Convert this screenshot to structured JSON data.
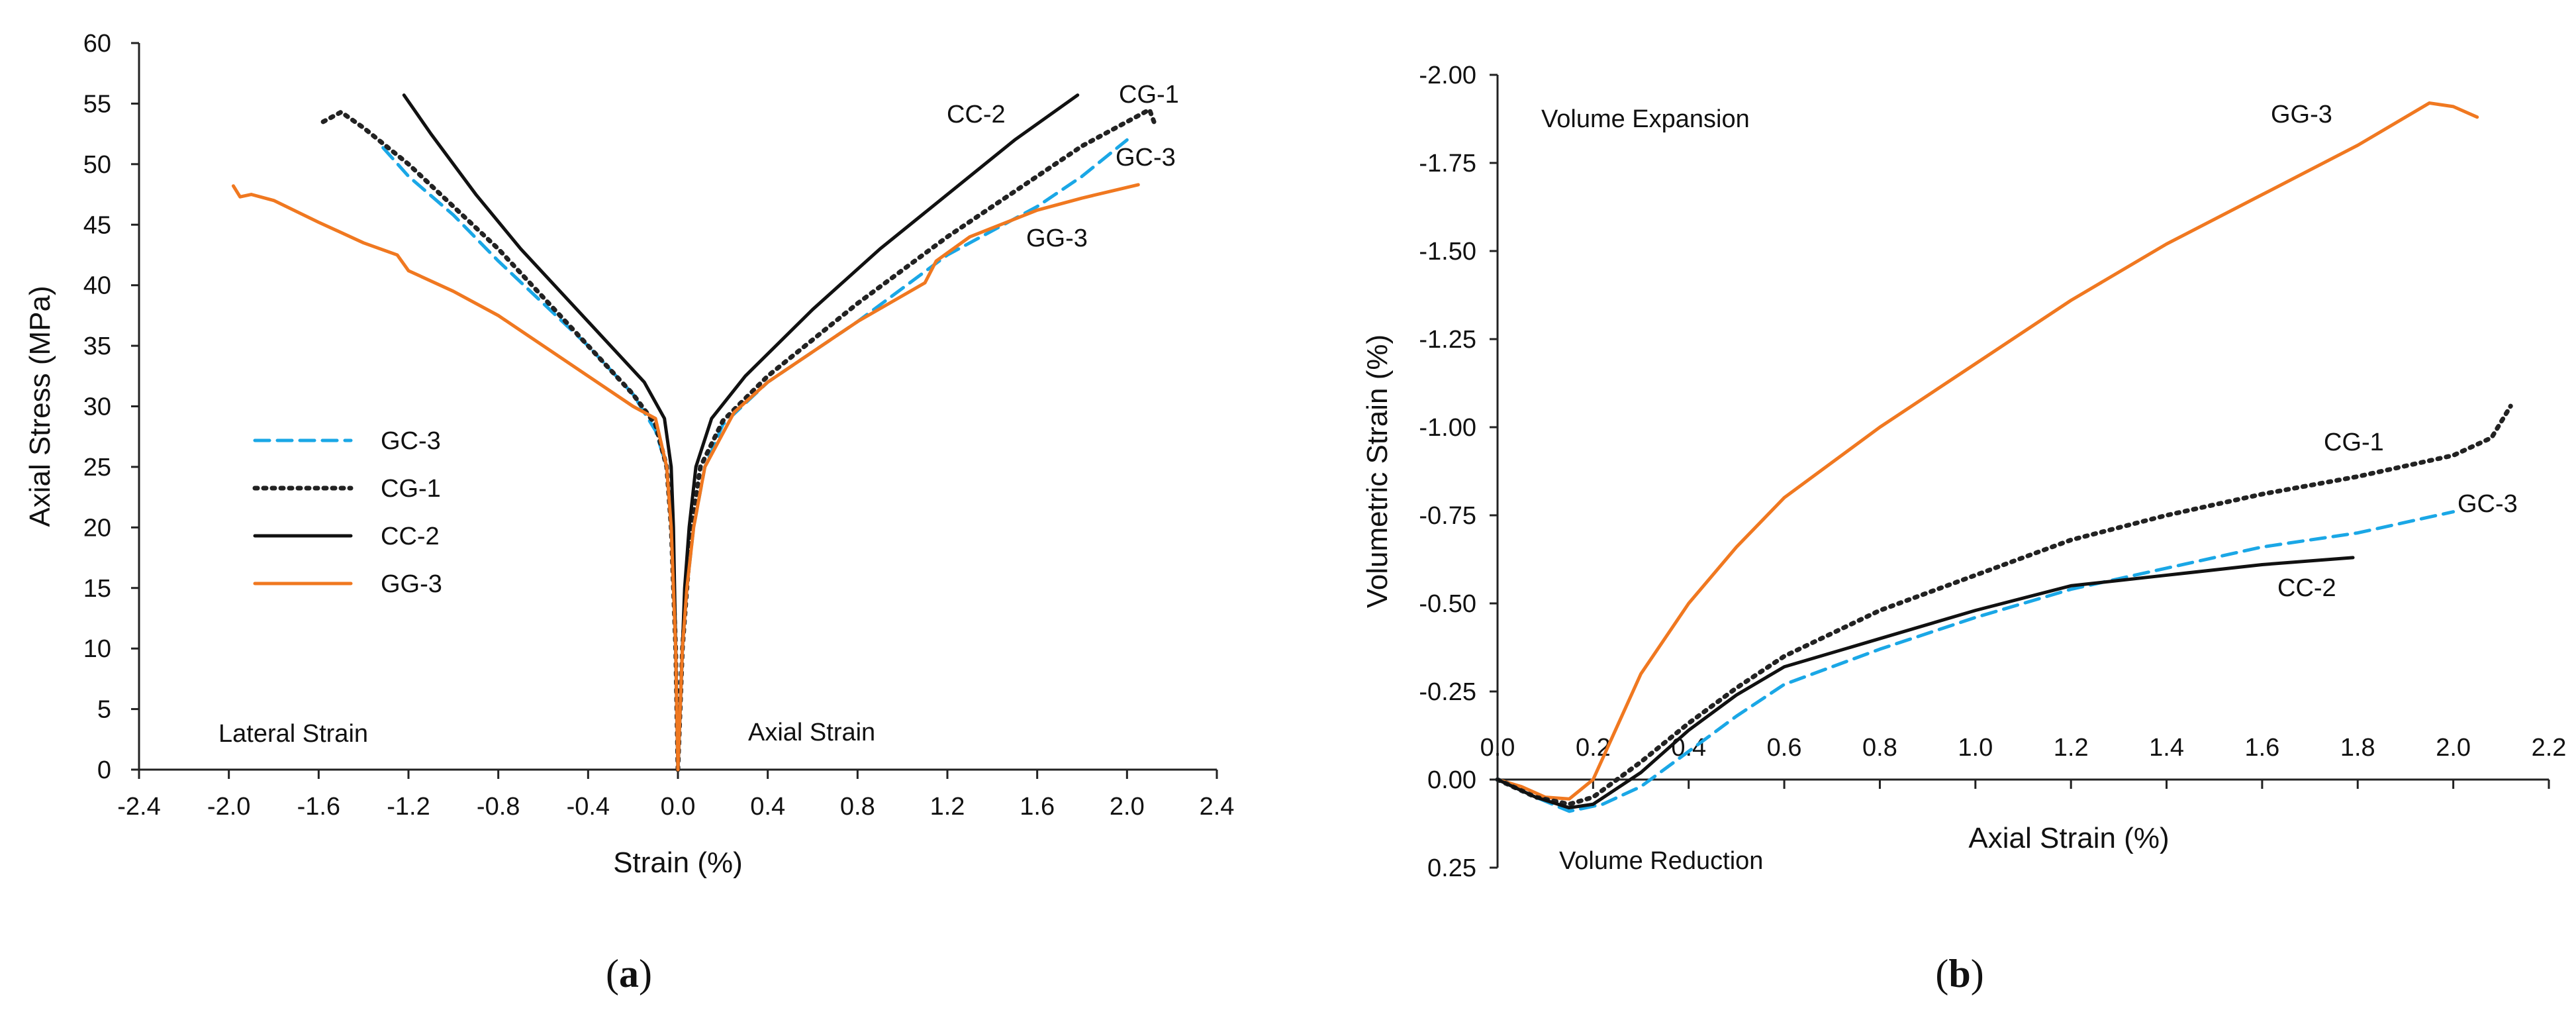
{
  "chart_data": [
    {
      "type": "line",
      "panel_label": "a",
      "title": "",
      "xlabel": "Strain (%)",
      "ylabel": "Axial Stress  (MPa)",
      "xlim": [
        -2.4,
        2.4
      ],
      "ylim": [
        0,
        60
      ],
      "xticks": [
        "-2.4",
        "-2.0",
        "-1.6",
        "-1.2",
        "-0.8",
        "-0.4",
        "0.0",
        "0.4",
        "0.8",
        "1.2",
        "1.6",
        "2.0",
        "2.4"
      ],
      "yticks": [
        "0",
        "5",
        "10",
        "15",
        "20",
        "25",
        "30",
        "35",
        "40",
        "45",
        "50",
        "55",
        "60"
      ],
      "annotations": {
        "left": "Lateral Strain",
        "right": "Axial Strain"
      },
      "legend": {
        "placement": "center-left",
        "entries": [
          {
            "label": "GC-3",
            "color": "#1aa7e6",
            "style": "dashed"
          },
          {
            "label": "CG-1",
            "color": "#222222",
            "style": "dotted"
          },
          {
            "label": "CC-2",
            "color": "#111111",
            "style": "solid"
          },
          {
            "label": "GG-3",
            "color": "#f07820",
            "style": "solid"
          }
        ]
      },
      "series": [
        {
          "name": "GC-3",
          "color": "#1aa7e6",
          "style": "dashed",
          "label": "GC-3",
          "lateral": [
            [
              0,
              0
            ],
            [
              -0.005,
              5
            ],
            [
              -0.01,
              10
            ],
            [
              -0.02,
              15
            ],
            [
              -0.03,
              20
            ],
            [
              -0.05,
              25
            ],
            [
              -0.1,
              28
            ],
            [
              -0.2,
              31
            ],
            [
              -0.4,
              35
            ],
            [
              -0.6,
              38.5
            ],
            [
              -0.8,
              42
            ],
            [
              -1.0,
              45.8
            ],
            [
              -1.2,
              49
            ],
            [
              -1.32,
              51.5
            ]
          ],
          "axial": [
            [
              0,
              0
            ],
            [
              0.01,
              5
            ],
            [
              0.02,
              10
            ],
            [
              0.04,
              15
            ],
            [
              0.07,
              20
            ],
            [
              0.12,
              25
            ],
            [
              0.2,
              28.5
            ],
            [
              0.4,
              32
            ],
            [
              0.8,
              37
            ],
            [
              1.2,
              42.5
            ],
            [
              1.6,
              46.5
            ],
            [
              1.8,
              49
            ],
            [
              2.0,
              52
            ]
          ]
        },
        {
          "name": "CG-1",
          "color": "#222222",
          "style": "dotted",
          "label": "CG-1",
          "lateral": [
            [
              0,
              0
            ],
            [
              -0.005,
              5
            ],
            [
              -0.01,
              10
            ],
            [
              -0.02,
              15
            ],
            [
              -0.03,
              20
            ],
            [
              -0.05,
              25
            ],
            [
              -0.1,
              28.5
            ],
            [
              -0.2,
              31
            ],
            [
              -0.4,
              35
            ],
            [
              -0.6,
              39
            ],
            [
              -0.8,
              43
            ],
            [
              -1.0,
              46.5
            ],
            [
              -1.2,
              50
            ],
            [
              -1.4,
              53
            ],
            [
              -1.5,
              54.3
            ],
            [
              -1.58,
              53.5
            ]
          ],
          "axial": [
            [
              0,
              0
            ],
            [
              0.01,
              5
            ],
            [
              0.02,
              10
            ],
            [
              0.04,
              15
            ],
            [
              0.06,
              20
            ],
            [
              0.1,
              25
            ],
            [
              0.2,
              28.8
            ],
            [
              0.4,
              32.5
            ],
            [
              0.8,
              38.5
            ],
            [
              1.2,
              44
            ],
            [
              1.6,
              49
            ],
            [
              1.8,
              51.5
            ],
            [
              2.0,
              53.5
            ],
            [
              2.1,
              54.5
            ],
            [
              2.12,
              53.5
            ]
          ]
        },
        {
          "name": "CC-2",
          "color": "#111111",
          "style": "solid",
          "label": "CC-2",
          "lateral": [
            [
              0,
              0
            ],
            [
              -0.005,
              5
            ],
            [
              -0.01,
              10
            ],
            [
              -0.015,
              15
            ],
            [
              -0.02,
              20
            ],
            [
              -0.03,
              25
            ],
            [
              -0.06,
              29
            ],
            [
              -0.15,
              32
            ],
            [
              -0.3,
              35
            ],
            [
              -0.5,
              39
            ],
            [
              -0.7,
              43
            ],
            [
              -0.9,
              47.5
            ],
            [
              -1.1,
              52.5
            ],
            [
              -1.22,
              55.7
            ]
          ],
          "axial": [
            [
              0,
              0
            ],
            [
              0.01,
              5
            ],
            [
              0.02,
              10
            ],
            [
              0.03,
              15
            ],
            [
              0.05,
              20
            ],
            [
              0.08,
              25
            ],
            [
              0.15,
              29
            ],
            [
              0.3,
              32.5
            ],
            [
              0.6,
              38
            ],
            [
              0.9,
              43
            ],
            [
              1.2,
              47.5
            ],
            [
              1.5,
              52
            ],
            [
              1.78,
              55.7
            ]
          ]
        },
        {
          "name": "GG-3",
          "color": "#f07820",
          "style": "solid",
          "label": "GG-3",
          "lateral": [
            [
              0,
              0
            ],
            [
              -0.005,
              5
            ],
            [
              -0.01,
              10
            ],
            [
              -0.02,
              15
            ],
            [
              -0.03,
              20
            ],
            [
              -0.05,
              25
            ],
            [
              -0.1,
              29
            ],
            [
              -0.2,
              30
            ],
            [
              -0.4,
              32.5
            ],
            [
              -0.6,
              35
            ],
            [
              -0.8,
              37.5
            ],
            [
              -1.0,
              39.5
            ],
            [
              -1.2,
              41.2
            ],
            [
              -1.25,
              42.5
            ],
            [
              -1.4,
              43.5
            ],
            [
              -1.6,
              45.2
            ],
            [
              -1.8,
              47
            ],
            [
              -1.9,
              47.5
            ],
            [
              -1.95,
              47.3
            ],
            [
              -1.98,
              48.2
            ]
          ],
          "axial": [
            [
              0,
              0
            ],
            [
              0.01,
              5
            ],
            [
              0.02,
              10
            ],
            [
              0.04,
              15
            ],
            [
              0.07,
              20
            ],
            [
              0.12,
              25
            ],
            [
              0.25,
              29.5
            ],
            [
              0.4,
              32
            ],
            [
              0.8,
              37
            ],
            [
              1.1,
              40.2
            ],
            [
              1.15,
              42
            ],
            [
              1.3,
              44
            ],
            [
              1.6,
              46.2
            ],
            [
              1.8,
              47.2
            ],
            [
              2.05,
              48.3
            ]
          ]
        }
      ]
    },
    {
      "type": "line",
      "panel_label": "b",
      "title": "",
      "xlabel": "Axial Strain (%)",
      "ylabel": "Volumetric  Strain   (%)",
      "xlim": [
        0.0,
        2.2
      ],
      "ylim": [
        0.25,
        -2.0
      ],
      "xticks": [
        "0.0",
        "0.2",
        "0.4",
        "0.6",
        "0.8",
        "1.0",
        "1.2",
        "1.4",
        "1.6",
        "1.8",
        "2.0",
        "2.2"
      ],
      "yticks": [
        "-2.00",
        "-1.75",
        "-1.50",
        "-1.25",
        "-1.00",
        "-0.75",
        "-0.50",
        "-0.25",
        "0.00",
        "0.25"
      ],
      "annotations": {
        "top": "Volume Expansion",
        "bottom": "Volume Reduction"
      },
      "series": [
        {
          "name": "GG-3",
          "color": "#f07820",
          "style": "solid",
          "label": "GG-3",
          "points": [
            [
              0,
              0
            ],
            [
              0.05,
              0.02
            ],
            [
              0.1,
              0.05
            ],
            [
              0.15,
              0.055
            ],
            [
              0.2,
              0.0
            ],
            [
              0.25,
              -0.15
            ],
            [
              0.3,
              -0.3
            ],
            [
              0.4,
              -0.5
            ],
            [
              0.5,
              -0.66
            ],
            [
              0.6,
              -0.8
            ],
            [
              0.8,
              -1.0
            ],
            [
              1.0,
              -1.18
            ],
            [
              1.2,
              -1.36
            ],
            [
              1.4,
              -1.52
            ],
            [
              1.6,
              -1.66
            ],
            [
              1.8,
              -1.8
            ],
            [
              1.95,
              -1.92
            ],
            [
              2.0,
              -1.91
            ],
            [
              2.05,
              -1.88
            ]
          ]
        },
        {
          "name": "CG-1",
          "color": "#222222",
          "style": "dotted",
          "label": "CG-1",
          "points": [
            [
              0,
              0
            ],
            [
              0.08,
              0.05
            ],
            [
              0.15,
              0.07
            ],
            [
              0.2,
              0.05
            ],
            [
              0.3,
              -0.05
            ],
            [
              0.4,
              -0.16
            ],
            [
              0.5,
              -0.26
            ],
            [
              0.6,
              -0.35
            ],
            [
              0.8,
              -0.48
            ],
            [
              1.0,
              -0.58
            ],
            [
              1.2,
              -0.68
            ],
            [
              1.4,
              -0.75
            ],
            [
              1.6,
              -0.81
            ],
            [
              1.8,
              -0.86
            ],
            [
              2.0,
              -0.92
            ],
            [
              2.08,
              -0.97
            ],
            [
              2.12,
              -1.06
            ]
          ]
        },
        {
          "name": "GC-3",
          "color": "#1aa7e6",
          "style": "dashed",
          "label": "GC-3",
          "points": [
            [
              0,
              0
            ],
            [
              0.08,
              0.05
            ],
            [
              0.15,
              0.09
            ],
            [
              0.22,
              0.07
            ],
            [
              0.3,
              0.02
            ],
            [
              0.4,
              -0.08
            ],
            [
              0.5,
              -0.18
            ],
            [
              0.6,
              -0.27
            ],
            [
              0.8,
              -0.37
            ],
            [
              1.0,
              -0.46
            ],
            [
              1.2,
              -0.54
            ],
            [
              1.4,
              -0.6
            ],
            [
              1.6,
              -0.66
            ],
            [
              1.8,
              -0.7
            ],
            [
              2.0,
              -0.76
            ]
          ]
        },
        {
          "name": "CC-2",
          "color": "#111111",
          "style": "solid",
          "label": "CC-2",
          "points": [
            [
              0,
              0
            ],
            [
              0.08,
              0.05
            ],
            [
              0.15,
              0.08
            ],
            [
              0.2,
              0.07
            ],
            [
              0.3,
              -0.02
            ],
            [
              0.4,
              -0.14
            ],
            [
              0.5,
              -0.24
            ],
            [
              0.6,
              -0.32
            ],
            [
              0.8,
              -0.4
            ],
            [
              1.0,
              -0.48
            ],
            [
              1.2,
              -0.55
            ],
            [
              1.4,
              -0.58
            ],
            [
              1.6,
              -0.61
            ],
            [
              1.79,
              -0.63
            ]
          ]
        }
      ]
    }
  ]
}
